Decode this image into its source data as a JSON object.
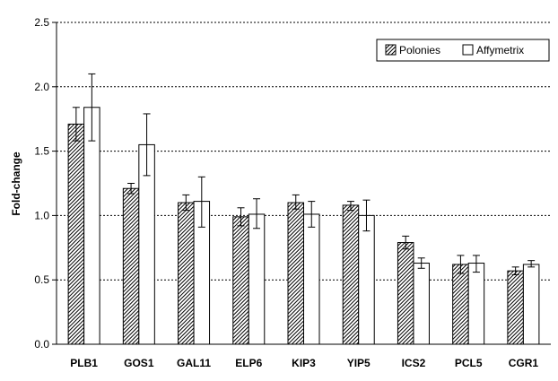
{
  "chart_data": {
    "type": "bar",
    "title": "",
    "xlabel": "",
    "ylabel": "Fold-change",
    "ylim": [
      0,
      2.5
    ],
    "yticks": [
      "0.0",
      "0.5",
      "1.0",
      "1.5",
      "2.0",
      "2.5"
    ],
    "grid": "horizontal dashed",
    "legend_position": "top-right",
    "categories": [
      "PLB1",
      "GOS1",
      "GAL11",
      "ELP6",
      "KIP3",
      "YIP5",
      "ICS2",
      "PCL5",
      "CGR1"
    ],
    "series": [
      {
        "name": "Polonies",
        "fill": "hatched",
        "values": [
          1.71,
          1.21,
          1.1,
          0.99,
          1.1,
          1.08,
          0.79,
          0.62,
          0.57
        ],
        "error_low": [
          1.58,
          1.17,
          1.04,
          0.92,
          1.05,
          1.04,
          0.74,
          0.55,
          0.54
        ],
        "error_high": [
          1.84,
          1.25,
          1.16,
          1.06,
          1.16,
          1.11,
          0.84,
          0.69,
          0.6
        ]
      },
      {
        "name": "Affymetrix",
        "fill": "white",
        "values": [
          1.84,
          1.55,
          1.11,
          1.01,
          1.01,
          1.0,
          0.63,
          0.63,
          0.62
        ],
        "error_low": [
          1.58,
          1.31,
          0.91,
          0.9,
          0.91,
          0.88,
          0.59,
          0.56,
          0.6
        ],
        "error_high": [
          2.1,
          1.79,
          1.3,
          1.13,
          1.11,
          1.12,
          0.67,
          0.69,
          0.65
        ]
      }
    ],
    "colors": {
      "axis": "#000000",
      "grid": "#000000",
      "bar_border": "#000000",
      "hatch": "#000000",
      "white_bar": "#ffffff"
    }
  }
}
